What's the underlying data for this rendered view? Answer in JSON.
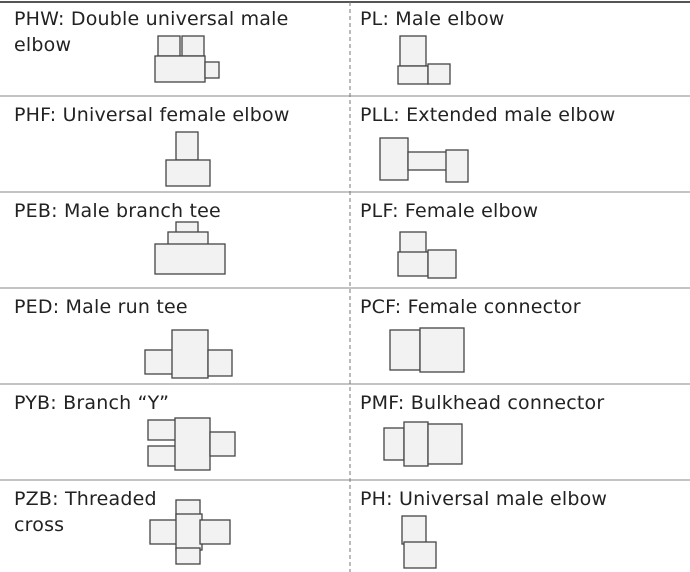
{
  "table": {
    "rows": [
      [
        "PHW: Double universal male elbow",
        "PL: Male elbow"
      ],
      [
        "PHF: Universal female elbow",
        "PLL: Extended male elbow"
      ],
      [
        "PEB: Male branch tee",
        "PLF: Female elbow"
      ],
      [
        "PED: Male run tee",
        "PCF: Female connector"
      ],
      [
        "PYB: Branch “Y”",
        "PMF: Bulkhead connector"
      ],
      [
        "PZB: Threaded cross",
        "PH: Universal male elbow"
      ]
    ]
  }
}
